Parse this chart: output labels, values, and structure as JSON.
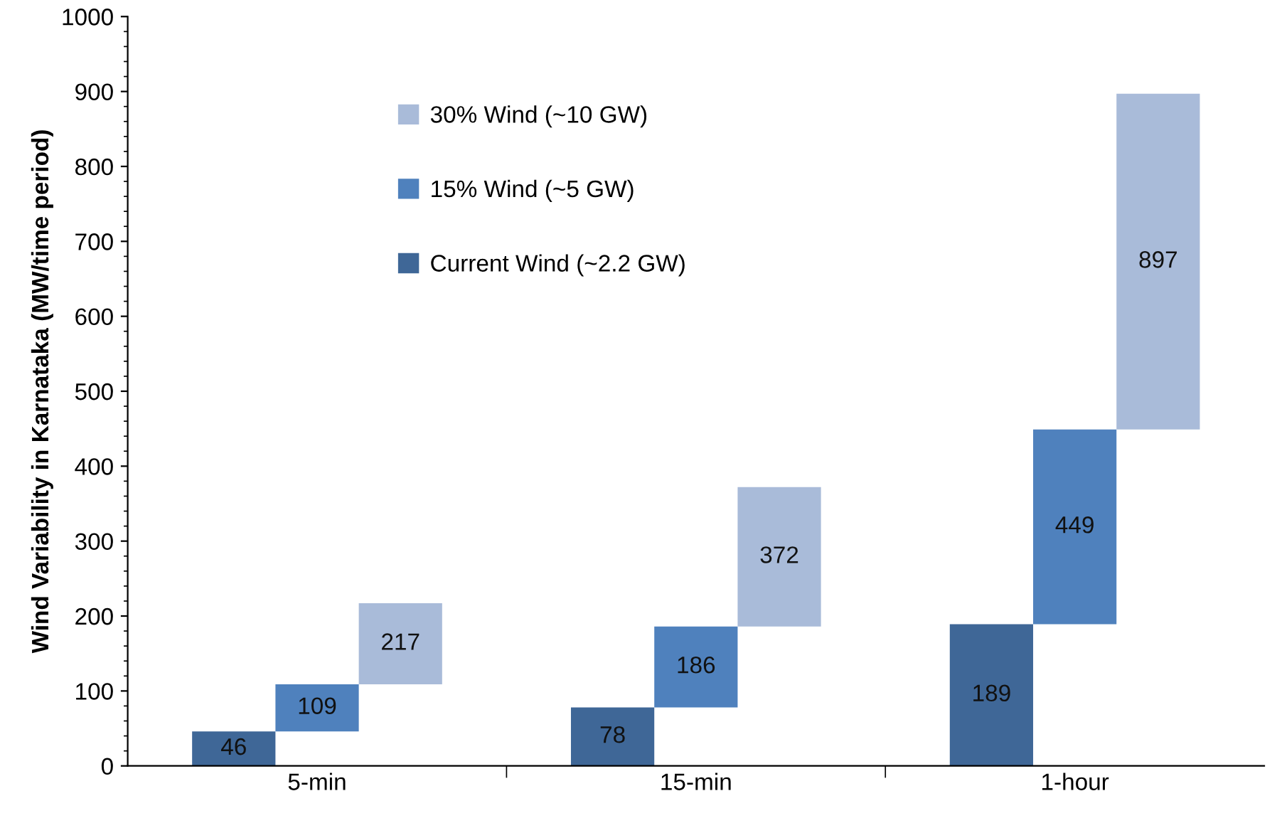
{
  "chart_data": {
    "type": "bar",
    "ylabel": "Wind Variability in Karnataka (MW/time period)",
    "categories": [
      "5-min",
      "15-min",
      "1-hour"
    ],
    "series": [
      {
        "name": "Current Wind (~2.2 GW)",
        "color": "#3f6797",
        "base": [
          0,
          0,
          0
        ],
        "values": [
          46,
          78,
          189
        ],
        "value_labels": [
          "46",
          "78",
          "189"
        ]
      },
      {
        "name": "15% Wind (~5 GW)",
        "color": "#4f81bd",
        "base": [
          46,
          78,
          189
        ],
        "values": [
          63,
          108,
          260
        ],
        "value_labels": [
          "109",
          "186",
          "449"
        ]
      },
      {
        "name": "30% Wind (~10 GW)",
        "color": "#a9bbd9",
        "base": [
          109,
          186,
          449
        ],
        "values": [
          108,
          186,
          448
        ],
        "value_labels": [
          "217",
          "372",
          "897"
        ]
      }
    ],
    "ylim": [
      0,
      1000
    ],
    "yticks": [
      0,
      100,
      200,
      300,
      400,
      500,
      600,
      700,
      800,
      900,
      1000
    ],
    "grid": false,
    "legend": "top left"
  }
}
